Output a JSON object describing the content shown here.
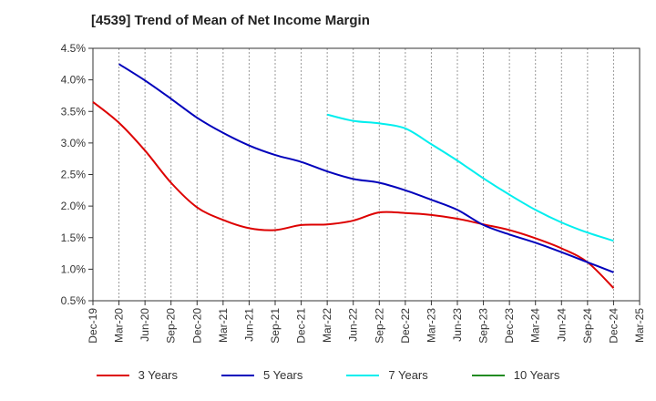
{
  "chart_data": {
    "type": "line",
    "title": "[4539]  Trend of Mean of Net Income Margin",
    "xlabel": "",
    "ylabel": "",
    "x_ticks": [
      "Dec-19",
      "Mar-20",
      "Jun-20",
      "Sep-20",
      "Dec-20",
      "Mar-21",
      "Jun-21",
      "Sep-21",
      "Dec-21",
      "Mar-22",
      "Jun-22",
      "Sep-22",
      "Dec-22",
      "Mar-23",
      "Jun-23",
      "Sep-23",
      "Dec-23",
      "Mar-24",
      "Jun-24",
      "Sep-24",
      "Dec-24",
      "Mar-25"
    ],
    "y_ticks": [
      "0.5%",
      "1.0%",
      "1.5%",
      "2.0%",
      "2.5%",
      "3.0%",
      "3.5%",
      "4.0%",
      "4.5%"
    ],
    "ylim": [
      0.5,
      4.5
    ],
    "grid": "vertical dashed",
    "legend_position": "bottom",
    "series": [
      {
        "name": "3 Years",
        "color": "#dd0000",
        "x": [
          "Dec-19",
          "Mar-20",
          "Jun-20",
          "Sep-20",
          "Dec-20",
          "Mar-21",
          "Jun-21",
          "Sep-21",
          "Dec-21",
          "Mar-22",
          "Jun-22",
          "Sep-22",
          "Dec-22",
          "Mar-23",
          "Jun-23",
          "Sep-23",
          "Dec-23",
          "Mar-24",
          "Jun-24",
          "Sep-24",
          "Dec-24"
        ],
        "values": [
          3.65,
          3.32,
          2.88,
          2.37,
          1.98,
          1.78,
          1.65,
          1.62,
          1.7,
          1.71,
          1.77,
          1.9,
          1.89,
          1.86,
          1.8,
          1.71,
          1.62,
          1.49,
          1.33,
          1.11,
          0.7
        ]
      },
      {
        "name": "5 Years",
        "color": "#0000bb",
        "x": [
          "Mar-20",
          "Jun-20",
          "Sep-20",
          "Dec-20",
          "Mar-21",
          "Jun-21",
          "Sep-21",
          "Dec-21",
          "Mar-22",
          "Jun-22",
          "Sep-22",
          "Dec-22",
          "Mar-23",
          "Jun-23",
          "Sep-23",
          "Dec-23",
          "Mar-24",
          "Jun-24",
          "Sep-24",
          "Dec-24"
        ],
        "values": [
          4.25,
          3.99,
          3.7,
          3.4,
          3.16,
          2.96,
          2.81,
          2.7,
          2.55,
          2.43,
          2.37,
          2.25,
          2.1,
          1.94,
          1.7,
          1.55,
          1.42,
          1.27,
          1.11,
          0.95
        ]
      },
      {
        "name": "7 Years",
        "color": "#00eeee",
        "x": [
          "Mar-22",
          "Jun-22",
          "Sep-22",
          "Dec-22",
          "Mar-23",
          "Jun-23",
          "Sep-23",
          "Dec-23",
          "Mar-24",
          "Jun-24",
          "Sep-24",
          "Dec-24"
        ],
        "values": [
          3.45,
          3.35,
          3.31,
          3.23,
          2.98,
          2.72,
          2.44,
          2.18,
          1.94,
          1.74,
          1.58,
          1.45
        ]
      },
      {
        "name": "10 Years",
        "color": "#228b22",
        "x": [],
        "values": []
      }
    ]
  }
}
